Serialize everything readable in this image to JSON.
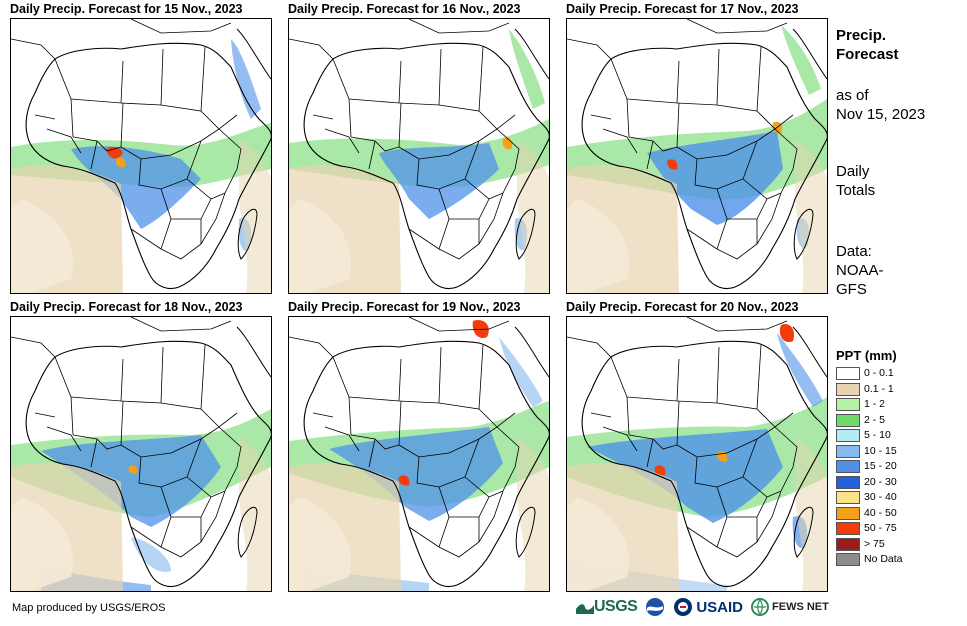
{
  "panels": [
    {
      "title": "Daily Precip. Forecast for 15 Nov., 2023"
    },
    {
      "title": "Daily Precip. Forecast for 16 Nov., 2023"
    },
    {
      "title": "Daily Precip. Forecast for 17 Nov., 2023"
    },
    {
      "title": "Daily Precip. Forecast for 18 Nov., 2023"
    },
    {
      "title": "Daily Precip. Forecast for 19 Nov., 2023"
    },
    {
      "title": "Daily Precip. Forecast for 20 Nov., 2023"
    }
  ],
  "sidebar": {
    "title_line1": "Precip.",
    "title_line2": "Forecast",
    "asof_line1": "as of",
    "asof_line2": "Nov 15, 2023",
    "totals_line1": "Daily",
    "totals_line2": "Totals",
    "data_line1": "Data:",
    "data_line2": "NOAA-",
    "data_line3": "GFS"
  },
  "legend": {
    "title": "PPT (mm)",
    "items": [
      {
        "label": "0 - 0.1",
        "color": "#ffffff"
      },
      {
        "label": "0.1 - 1",
        "color": "#e8d4b0"
      },
      {
        "label": "1 - 2",
        "color": "#b6f2a6"
      },
      {
        "label": "2 - 5",
        "color": "#6fd96a"
      },
      {
        "label": "5 - 10",
        "color": "#b4ecf4"
      },
      {
        "label": "10 - 15",
        "color": "#86b9ee"
      },
      {
        "label": "15 - 20",
        "color": "#4f91e8"
      },
      {
        "label": "20 - 30",
        "color": "#2360dd"
      },
      {
        "label": "30 - 40",
        "color": "#fbe38a"
      },
      {
        "label": "40 - 50",
        "color": "#f4a018"
      },
      {
        "label": "50 - 75",
        "color": "#f23c0c"
      },
      {
        "label": "> 75",
        "color": "#9d1c1c"
      },
      {
        "label": "No Data",
        "color": "#8c8c8c"
      }
    ]
  },
  "footer": {
    "credit": "Map produced by USGS/EROS",
    "logos": {
      "usgs": "USGS",
      "usaid": "USAID",
      "fews": "FEWS NET"
    }
  }
}
